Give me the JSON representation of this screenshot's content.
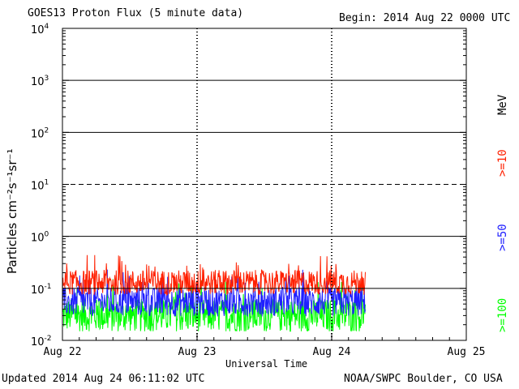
{
  "header": {
    "title": "GOES13 Proton Flux (5 minute data)",
    "begin": "Begin: 2014 Aug 22 0000 UTC"
  },
  "footer": {
    "updated": "Updated 2014 Aug 24 06:11:02 UTC",
    "credit": "NOAA/SWPC Boulder, CO USA"
  },
  "chart_data": {
    "type": "line",
    "title": "GOES13 Proton Flux (5 minute data)",
    "xlabel": "Universal Time",
    "ylabel": "Particles cm⁻²s⁻¹sr⁻¹",
    "yscale": "log",
    "ylim": [
      0.01,
      10000
    ],
    "xlim_days": [
      0,
      3
    ],
    "x_tick_labels": [
      "Aug 22",
      "Aug 23",
      "Aug 24",
      "Aug 25"
    ],
    "y_tick_labels": [
      {
        "base": "10",
        "exp": "-2"
      },
      {
        "base": "10",
        "exp": "-1"
      },
      {
        "base": "10",
        "exp": "0"
      },
      {
        "base": "10",
        "exp": "1"
      },
      {
        "base": "10",
        "exp": "2"
      },
      {
        "base": "10",
        "exp": "3"
      },
      {
        "base": "10",
        "exp": "4"
      }
    ],
    "threshold_lines": [
      {
        "value": 0.1,
        "style": "solid"
      },
      {
        "value": 1,
        "style": "solid"
      },
      {
        "value": 10,
        "style": "dashed"
      },
      {
        "value": 100,
        "style": "solid"
      },
      {
        "value": 1000,
        "style": "solid"
      }
    ],
    "unit_label": "MeV",
    "data_end_days": 2.25,
    "series": [
      {
        "name": ">=10",
        "color": "#ff2000",
        "typical": 0.13,
        "spread": 0.12
      },
      {
        "name": ">=50",
        "color": "#2020ff",
        "typical": 0.055,
        "spread": 0.14
      },
      {
        "name": ">=100",
        "color": "#00ff00",
        "typical": 0.03,
        "spread": 0.16
      }
    ]
  }
}
